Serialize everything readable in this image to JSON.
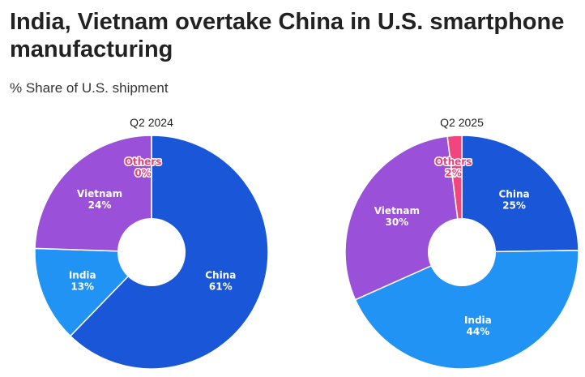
{
  "title": "India, Vietnam overtake China in U.S. smartphone manufacturing",
  "subtitle": "% Share of U.S. shipment",
  "colors": {
    "China": "#1957d8",
    "India": "#2193f5",
    "Vietnam": "#9a50d8",
    "Others": "#f0457d"
  },
  "chart_data": [
    {
      "type": "pie",
      "title": "Q2 2024",
      "slices": [
        {
          "name": "China",
          "value": 61,
          "label": "61%"
        },
        {
          "name": "India",
          "value": 13,
          "label": "13%"
        },
        {
          "name": "Vietnam",
          "value": 24,
          "label": "24%"
        },
        {
          "name": "Others",
          "value": 0,
          "label": "0%"
        }
      ]
    },
    {
      "type": "pie",
      "title": "Q2 2025",
      "slices": [
        {
          "name": "China",
          "value": 25,
          "label": "25%"
        },
        {
          "name": "India",
          "value": 44,
          "label": "44%"
        },
        {
          "name": "Vietnam",
          "value": 30,
          "label": "30%"
        },
        {
          "name": "Others",
          "value": 2,
          "label": "2%"
        }
      ]
    }
  ]
}
